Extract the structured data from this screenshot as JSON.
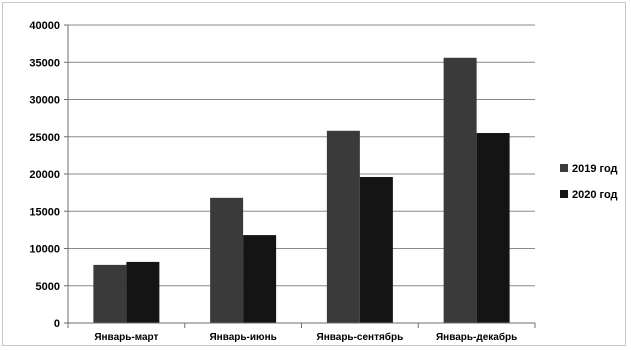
{
  "chart_data": {
    "type": "bar",
    "title": "",
    "xlabel": "",
    "ylabel": "",
    "categories": [
      "Январь-март",
      "Январь-июнь",
      "Январь-сентябрь",
      "Январь-декабрь"
    ],
    "series": [
      {
        "name": "2019 год",
        "values": [
          7800,
          16800,
          25800,
          35600
        ],
        "color": "#3a3a3a"
      },
      {
        "name": "2020 год",
        "values": [
          8200,
          11800,
          19600,
          25500
        ],
        "color": "#141414"
      }
    ],
    "ylim": [
      0,
      40000
    ],
    "yticks": [
      "0",
      "5000",
      "10000",
      "15000",
      "20000",
      "25000",
      "30000",
      "35000",
      "40000"
    ],
    "grid": true,
    "legend_position": "right"
  }
}
